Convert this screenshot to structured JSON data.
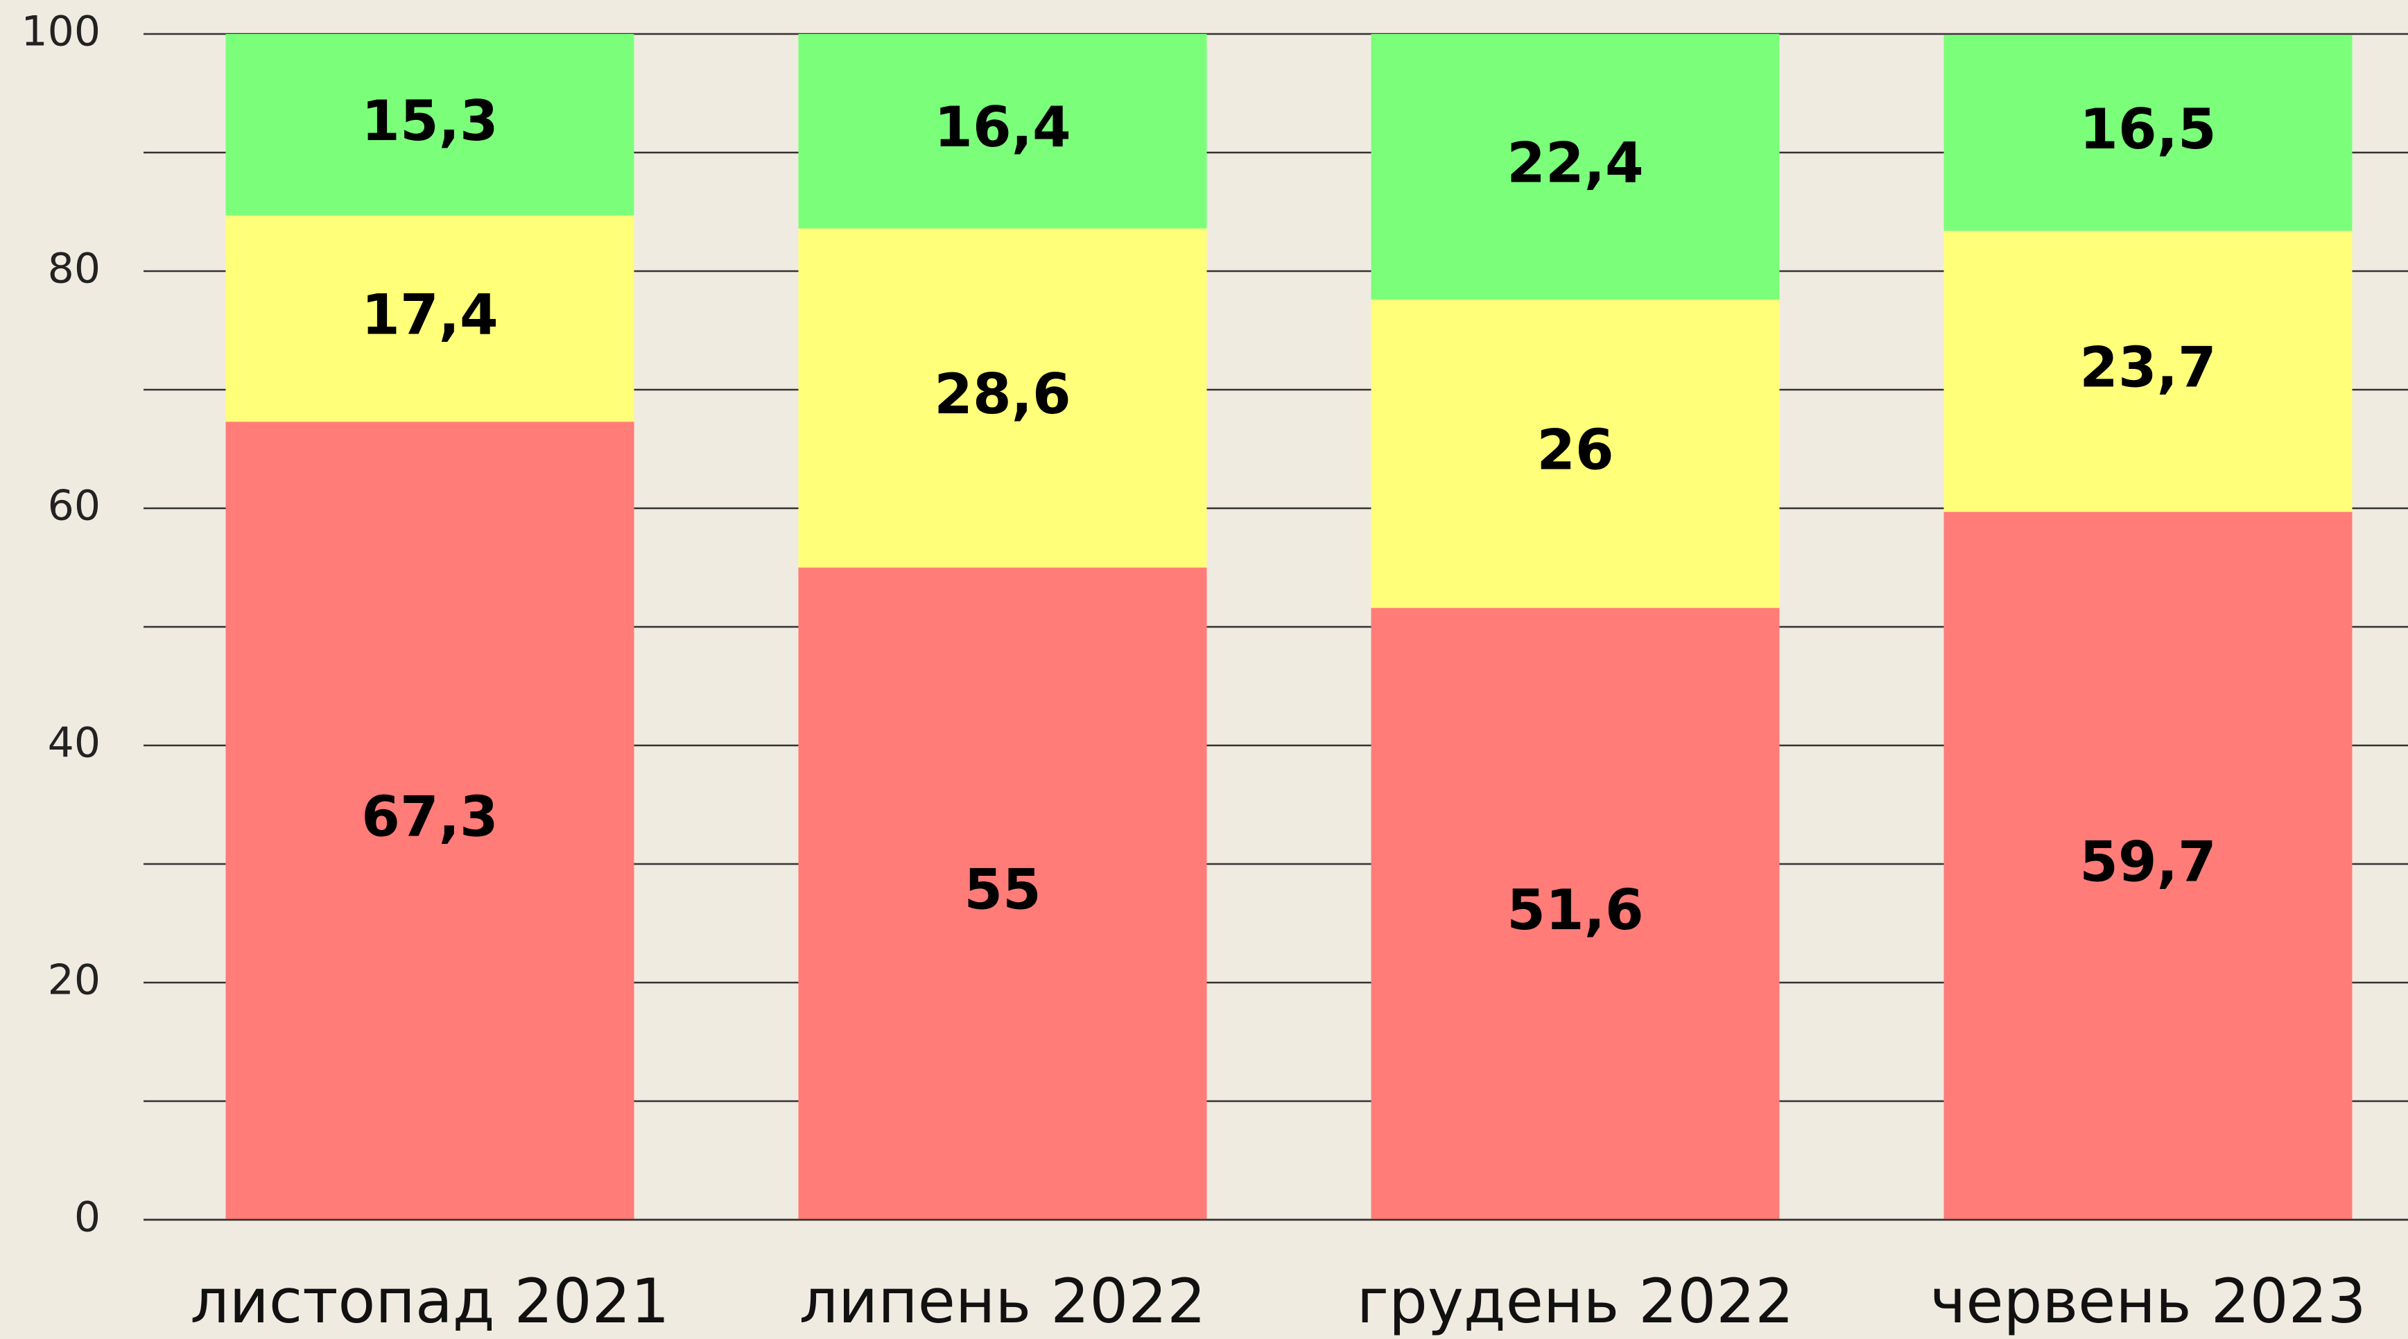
{
  "chart_data": {
    "type": "stacked_bar",
    "categories": [
      "листопад 2021",
      "липень 2022",
      "грудень 2022",
      "червень 2023"
    ],
    "series": [
      {
        "color": "#ff7c78",
        "values": [
          67.3,
          55,
          51.6,
          59.7
        ],
        "value_labels": [
          "67,3",
          "55",
          "51,6",
          "59,7"
        ]
      },
      {
        "color": "#ffff7a",
        "values": [
          17.4,
          28.6,
          26,
          23.7
        ],
        "value_labels": [
          "17,4",
          "28,6",
          "26",
          "23,7"
        ]
      },
      {
        "color": "#7bff7b",
        "values": [
          15.3,
          16.4,
          22.4,
          16.5
        ],
        "value_labels": [
          "15,3",
          "16,4",
          "22,4",
          "16,5"
        ]
      }
    ],
    "ylim": [
      0,
      100
    ],
    "yticks": [
      0,
      20,
      40,
      60,
      80,
      100
    ],
    "minor_yticks": [
      10,
      30,
      50,
      70,
      90
    ],
    "grid": true
  }
}
